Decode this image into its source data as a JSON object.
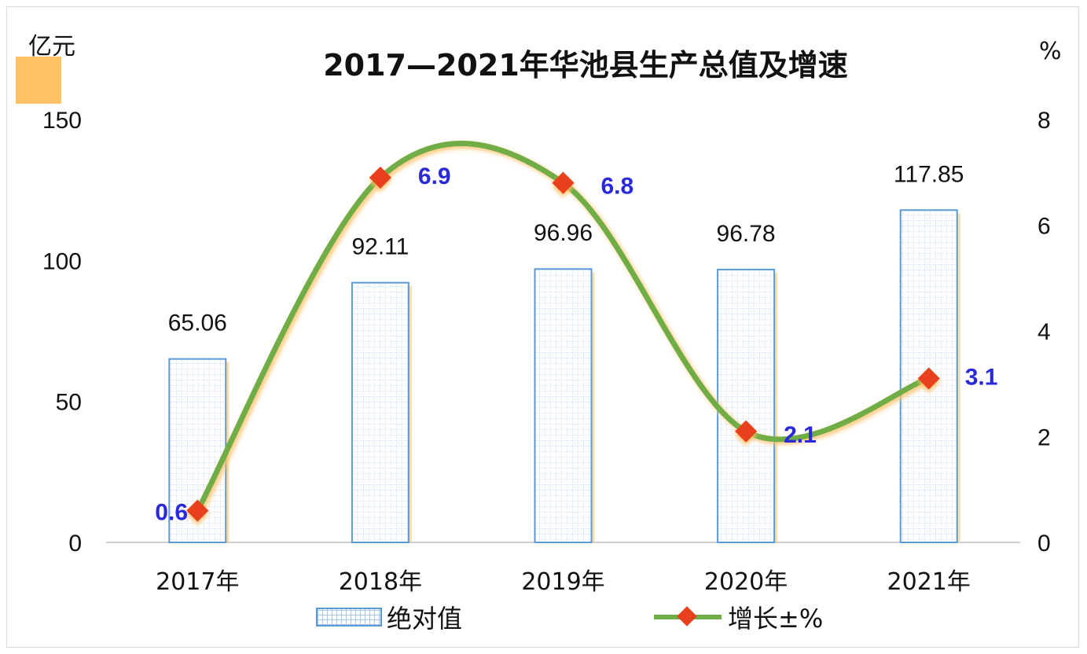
{
  "chart_data": {
    "type": "bar",
    "title": "2017—2021年华池县生产总值及增速",
    "y_left_unit": "亿元",
    "y_right_unit": "%",
    "categories": [
      "2017年",
      "2018年",
      "2019年",
      "2020年",
      "2021年"
    ],
    "ylim_left": [
      0,
      150
    ],
    "ylim_right": [
      0,
      8
    ],
    "left_ticks": [
      0,
      50,
      100,
      150
    ],
    "right_ticks": [
      0,
      2,
      4,
      6,
      8
    ],
    "series": [
      {
        "name": "绝对值",
        "type": "bar",
        "axis": "left",
        "values": [
          65.06,
          92.11,
          96.96,
          96.78,
          117.85
        ],
        "labels": [
          "65.06",
          "92.11",
          "96.96",
          "96.78",
          "117.85"
        ]
      },
      {
        "name": "增长±%",
        "type": "line",
        "axis": "right",
        "values": [
          0.6,
          6.9,
          6.8,
          2.1,
          3.1
        ],
        "labels": [
          "0.6",
          "6.9",
          "6.8",
          "2.1",
          "3.1"
        ]
      }
    ],
    "legend": "bottom",
    "grid": false,
    "colors": {
      "bar_border": "#5b9bd5",
      "bar_fill": "#ffffff",
      "line": "#70ad47",
      "marker": "#e8401c",
      "line_label": "#2929d9",
      "glow": "#ffc066"
    }
  }
}
